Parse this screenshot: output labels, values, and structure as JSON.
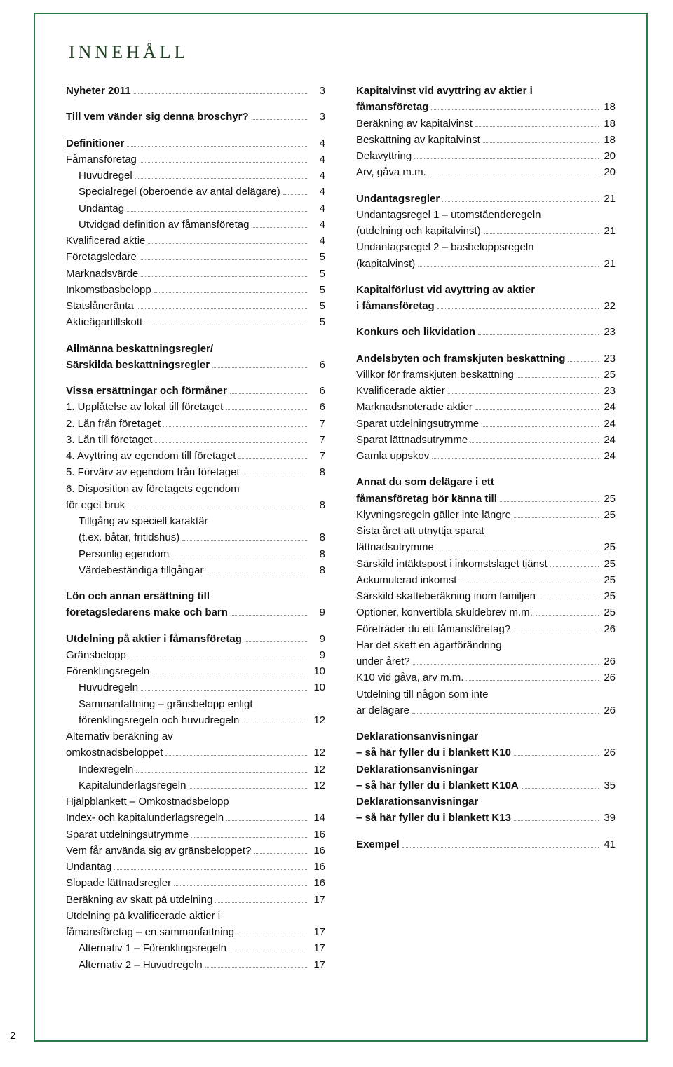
{
  "title": "INNEHÅLL",
  "page_number": "2",
  "colors": {
    "border": "#2a7a4a",
    "text": "#111111",
    "dots": "#888888"
  },
  "left": [
    {
      "label": "Nyheter 2011",
      "page": "3",
      "bold": true,
      "mt": false
    },
    {
      "label": "Till vem vänder sig denna broschyr?",
      "page": "3",
      "bold": true,
      "mt": true
    },
    {
      "label": "Definitioner",
      "page": "4",
      "bold": true,
      "mt": true
    },
    {
      "label": "Fåmansföretag",
      "page": "4"
    },
    {
      "label": "Huvudregel",
      "page": "4",
      "indent": 1
    },
    {
      "label": "Specialregel (oberoende av antal delägare)",
      "page": "4",
      "indent": 1
    },
    {
      "label": "Undantag",
      "page": "4",
      "indent": 1
    },
    {
      "label": "Utvidgad definition av fåmansföretag",
      "page": "4",
      "indent": 1
    },
    {
      "label": "Kvalificerad aktie",
      "page": "4"
    },
    {
      "label": "Företagsledare",
      "page": "5"
    },
    {
      "label": "Marknadsvärde",
      "page": "5"
    },
    {
      "label": "Inkomstbasbelopp",
      "page": "5"
    },
    {
      "label": "Statslåneränta",
      "page": "5"
    },
    {
      "label": "Aktieägartillskott",
      "page": "5"
    },
    {
      "label": "Allmänna beskattningsregler/",
      "nopage": true,
      "bold": true,
      "mt": true
    },
    {
      "label": "Särskilda beskattningsregler",
      "page": "6",
      "bold": true
    },
    {
      "label": "Vissa ersättningar och förmåner",
      "page": "6",
      "bold": true,
      "mt": true
    },
    {
      "label": "1. Upplåtelse av lokal till företaget",
      "page": "6"
    },
    {
      "label": "2. Lån från företaget",
      "page": "7"
    },
    {
      "label": "3. Lån till företaget",
      "page": "7"
    },
    {
      "label": "4. Avyttring av egendom till företaget",
      "page": "7"
    },
    {
      "label": "5. Förvärv av egendom från företaget",
      "page": "8"
    },
    {
      "label": "6. Disposition av företagets egendom",
      "nopage": true
    },
    {
      "label": "    för eget bruk",
      "page": "8"
    },
    {
      "label": "Tillgång av speciell karaktär",
      "nopage": true,
      "indent": 1
    },
    {
      "label": "(t.ex. båtar, fritidshus)",
      "page": "8",
      "indent": 1
    },
    {
      "label": "Personlig egendom",
      "page": "8",
      "indent": 1
    },
    {
      "label": "Värdebeständiga tillgångar",
      "page": "8",
      "indent": 1
    },
    {
      "label": "Lön och annan ersättning till",
      "nopage": true,
      "bold": true,
      "mt": true
    },
    {
      "label": "företagsledarens make och barn",
      "page": "9",
      "bold": true
    },
    {
      "label": "Utdelning på aktier i fåmansföretag",
      "page": "9",
      "bold": true,
      "mt": true
    },
    {
      "label": "Gränsbelopp",
      "page": "9"
    },
    {
      "label": "Förenklingsregeln",
      "page": "10"
    },
    {
      "label": "Huvudregeln",
      "page": "10",
      "indent": 1
    },
    {
      "label": "Sammanfattning – gränsbelopp enligt",
      "nopage": true,
      "indent": 1
    },
    {
      "label": "förenklingsregeln och huvudregeln",
      "page": "12",
      "indent": 1
    },
    {
      "label": "Alternativ beräkning av",
      "nopage": true
    },
    {
      "label": "omkostnadsbeloppet",
      "page": "12"
    },
    {
      "label": "Indexregeln",
      "page": "12",
      "indent": 1
    },
    {
      "label": "Kapitalunderlagsregeln",
      "page": "12",
      "indent": 1
    },
    {
      "label": "Hjälpblankett – Omkostnadsbelopp",
      "nopage": true
    },
    {
      "label": "Index- och kapitalunderlagsregeln",
      "page": "14"
    },
    {
      "label": "Sparat utdelningsutrymme",
      "page": "16"
    },
    {
      "label": "Vem får använda sig av gränsbeloppet?",
      "page": "16"
    },
    {
      "label": "Undantag",
      "page": "16"
    },
    {
      "label": "Slopade lättnadsregler",
      "page": "16"
    },
    {
      "label": "Beräkning av skatt på utdelning",
      "page": "17"
    },
    {
      "label": "Utdelning på kvalificerade aktier i",
      "nopage": true
    },
    {
      "label": "fåmansföretag – en sammanfattning",
      "page": "17"
    },
    {
      "label": "Alternativ 1 – Förenklingsregeln",
      "page": "17",
      "indent": 1
    },
    {
      "label": "Alternativ 2 – Huvudregeln",
      "page": "17",
      "indent": 1
    }
  ],
  "right": [
    {
      "label": "Kapitalvinst vid avyttring av aktier i",
      "nopage": true,
      "bold": true
    },
    {
      "label": "fåmansföretag",
      "page": "18",
      "bold": true
    },
    {
      "label": "Beräkning av kapitalvinst",
      "page": "18"
    },
    {
      "label": "Beskattning av kapitalvinst",
      "page": "18"
    },
    {
      "label": "Delavyttring",
      "page": "20"
    },
    {
      "label": "Arv, gåva m.m.",
      "page": "20"
    },
    {
      "label": "Undantagsregler",
      "page": "21",
      "bold": true,
      "mt": true
    },
    {
      "label": "Undantagsregel 1 – utomståenderegeln",
      "nopage": true
    },
    {
      "label": "(utdelning och kapitalvinst)",
      "page": "21"
    },
    {
      "label": "Undantagsregel 2 – basbeloppsregeln",
      "nopage": true
    },
    {
      "label": "(kapitalvinst)",
      "page": "21"
    },
    {
      "label": "Kapitalförlust vid avyttring av aktier",
      "nopage": true,
      "bold": true,
      "mt": true
    },
    {
      "label": "i fåmansföretag",
      "page": "22",
      "bold": true
    },
    {
      "label": "Konkurs och likvidation",
      "page": "23",
      "bold": true,
      "mt": true
    },
    {
      "label": "Andelsbyten och framskjuten beskattning",
      "page": "23",
      "bold": true,
      "mt": true
    },
    {
      "label": "Villkor för framskjuten beskattning",
      "page": "25"
    },
    {
      "label": "Kvalificerade aktier",
      "page": "23"
    },
    {
      "label": "Marknadsnoterade aktier",
      "page": "24"
    },
    {
      "label": "Sparat utdelningsutrymme",
      "page": "24"
    },
    {
      "label": "Sparat lättnadsutrymme",
      "page": "24"
    },
    {
      "label": "Gamla uppskov",
      "page": "24"
    },
    {
      "label": "Annat du som delägare i ett",
      "nopage": true,
      "bold": true,
      "mt": true
    },
    {
      "label": "fåmansföretag bör känna till",
      "page": "25",
      "bold": true
    },
    {
      "label": "Klyvningsregeln gäller inte längre",
      "page": "25"
    },
    {
      "label": "Sista året att utnyttja sparat",
      "nopage": true
    },
    {
      "label": "lättnadsutrymme",
      "page": "25"
    },
    {
      "label": "Särskild intäktspost i inkomstslaget tjänst",
      "page": "25"
    },
    {
      "label": "Ackumulerad inkomst",
      "page": "25"
    },
    {
      "label": "Särskild skatteberäkning inom familjen",
      "page": "25"
    },
    {
      "label": "Optioner, konvertibla skuldebrev m.m.",
      "page": "25"
    },
    {
      "label": "Företräder du ett fåmansföretag?",
      "page": "26"
    },
    {
      "label": "Har det skett en ägarförändring",
      "nopage": true
    },
    {
      "label": "under året?",
      "page": "26"
    },
    {
      "label": "K10 vid gåva, arv m.m.",
      "page": "26"
    },
    {
      "label": "Utdelning till någon som inte",
      "nopage": true
    },
    {
      "label": "är delägare",
      "page": "26"
    },
    {
      "label": "Deklarationsanvisningar",
      "nopage": true,
      "bold": true,
      "mt": true
    },
    {
      "label": "– så här fyller du i blankett K10",
      "page": "26",
      "bold": true
    },
    {
      "label": "Deklarationsanvisningar",
      "nopage": true,
      "bold": true
    },
    {
      "label": "– så här fyller du i blankett K10A",
      "page": "35",
      "bold": true
    },
    {
      "label": "Deklarationsanvisningar",
      "nopage": true,
      "bold": true
    },
    {
      "label": "– så här fyller du i blankett K13",
      "page": "39",
      "bold": true
    },
    {
      "label": "Exempel",
      "page": "41",
      "bold": true,
      "mt": true
    }
  ]
}
